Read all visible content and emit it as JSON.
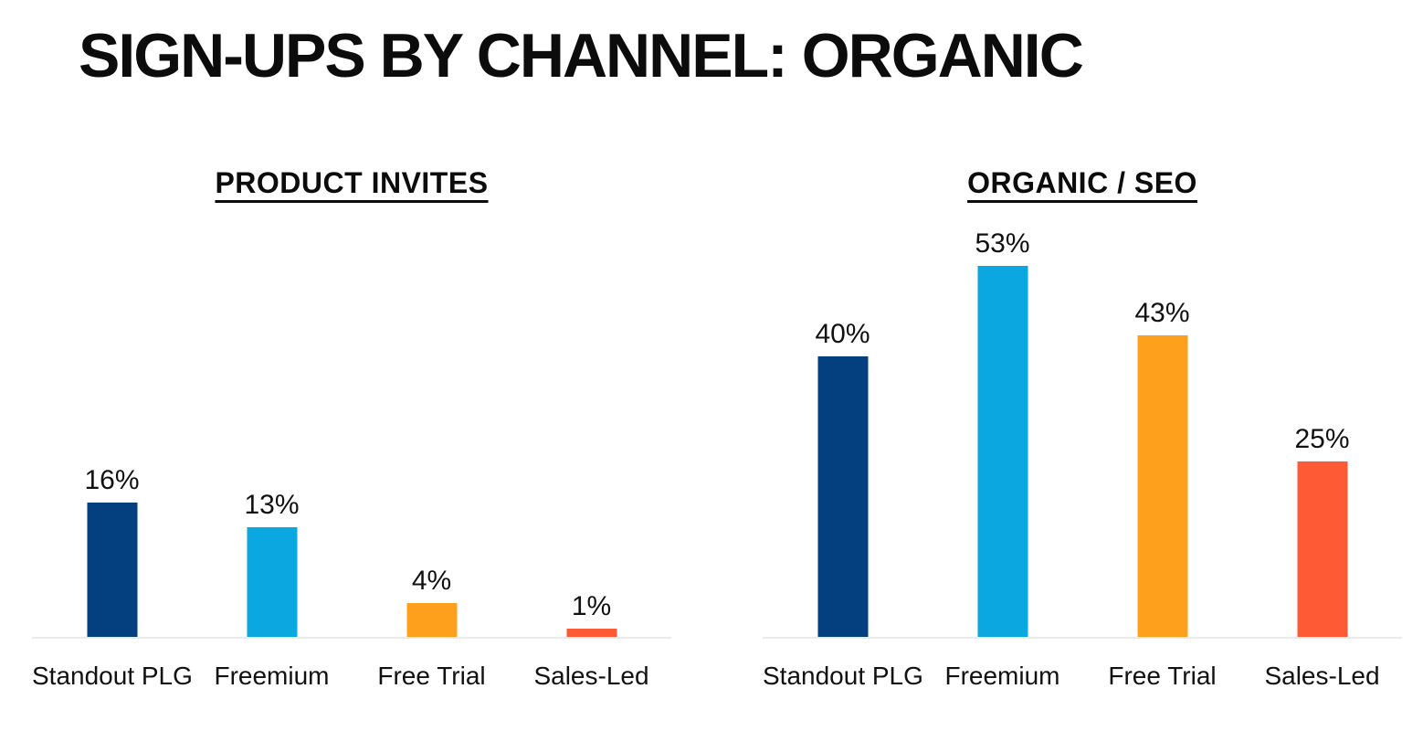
{
  "page": {
    "title": "SIGN-UPS BY CHANNEL: ORGANIC",
    "background": "#ffffff"
  },
  "colors": {
    "navy": "#04407F",
    "cyan": "#0AA7E1",
    "orange": "#FFA01C",
    "tomato": "#FF5A36",
    "axis_line": "#ebebeb",
    "text": "#111111"
  },
  "chart_data": [
    {
      "type": "bar",
      "title": "PRODUCT INVITES",
      "categories": [
        "Standout PLG",
        "Freemium",
        "Free Trial",
        "Sales-Led"
      ],
      "values": [
        16,
        13,
        4,
        1
      ],
      "value_labels": [
        "16%",
        "13%",
        "4%",
        "1%"
      ],
      "bar_colors": [
        "#04407F",
        "#0AA7E1",
        "#FFA01C",
        "#FF5A36"
      ],
      "xlabel": "",
      "ylabel": "",
      "ylim": [
        0,
        50
      ],
      "grid": false,
      "legend_position": "none"
    },
    {
      "type": "bar",
      "title": "ORGANIC / SEO",
      "categories": [
        "Standout PLG",
        "Freemium",
        "Free Trial",
        "Sales-Led"
      ],
      "values": [
        40,
        53,
        43,
        25
      ],
      "value_labels": [
        "40%",
        "53%",
        "43%",
        "25%"
      ],
      "bar_colors": [
        "#04407F",
        "#0AA7E1",
        "#FFA01C",
        "#FF5A36"
      ],
      "xlabel": "",
      "ylabel": "",
      "ylim": [
        0,
        60
      ],
      "grid": false,
      "legend_position": "none"
    }
  ]
}
